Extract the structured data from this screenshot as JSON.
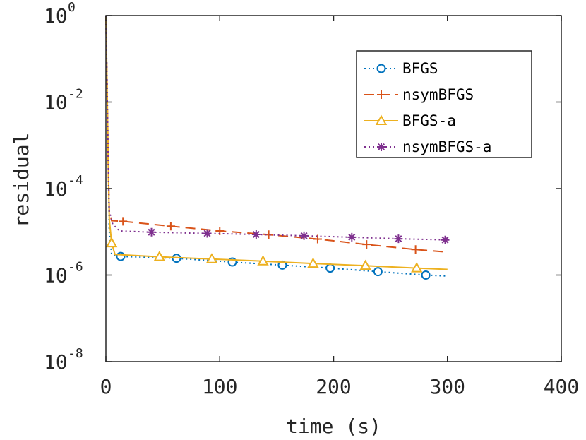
{
  "chart_data": {
    "type": "line",
    "xlabel": "time (s)",
    "ylabel": "residual",
    "xlim": [
      0,
      400
    ],
    "ylim": [
      1e-08,
      1
    ],
    "yscale": "log",
    "grid": false,
    "legend_position": "top-right",
    "x_ticks": [
      "0",
      "100",
      "200",
      "300",
      "400"
    ],
    "y_ticks": [
      {
        "value": 1,
        "base": "10",
        "exponent": "0"
      },
      {
        "value": 0.01,
        "base": "10",
        "exponent": "-2"
      },
      {
        "value": 0.0001,
        "base": "10",
        "exponent": "-4"
      },
      {
        "value": 1e-06,
        "base": "10",
        "exponent": "-6"
      },
      {
        "value": 1e-08,
        "base": "10",
        "exponent": "-8"
      }
    ],
    "series": [
      {
        "name": "BFGS",
        "color": "#0072BD",
        "line": "dotted",
        "marker": "circle",
        "line_points": [
          [
            0,
            1
          ],
          [
            1,
            0.03
          ],
          [
            2,
            0.0005
          ],
          [
            3,
            1e-05
          ],
          [
            5,
            3e-06
          ],
          [
            13,
            2.7e-06
          ],
          [
            62,
            2.45e-06
          ],
          [
            111,
            2e-06
          ],
          [
            155,
            1.7e-06
          ],
          [
            197,
            1.45e-06
          ],
          [
            239,
            1.2e-06
          ],
          [
            281,
            1e-06
          ],
          [
            300,
            9.5e-07
          ]
        ],
        "marker_points": [
          [
            13,
            2.7e-06
          ],
          [
            62,
            2.45e-06
          ],
          [
            111,
            2e-06
          ],
          [
            155,
            1.7e-06
          ],
          [
            197,
            1.45e-06
          ],
          [
            239,
            1.2e-06
          ],
          [
            281,
            1e-06
          ]
        ]
      },
      {
        "name": "nsymBFGS",
        "color": "#D95319",
        "line": "dashed",
        "marker": "plus",
        "line_points": [
          [
            0,
            1
          ],
          [
            1,
            0.03
          ],
          [
            2,
            0.0005
          ],
          [
            3,
            3e-05
          ],
          [
            5,
            1.8e-05
          ],
          [
            15,
            1.75e-05
          ],
          [
            57,
            1.35e-05
          ],
          [
            100,
            1.05e-05
          ],
          [
            143,
            8.6e-06
          ],
          [
            186,
            6.8e-06
          ],
          [
            229,
            5.1e-06
          ],
          [
            272,
            3.9e-06
          ],
          [
            300,
            3.4e-06
          ]
        ],
        "marker_points": [
          [
            15,
            1.75e-05
          ],
          [
            57,
            1.35e-05
          ],
          [
            100,
            1.05e-05
          ],
          [
            143,
            8.6e-06
          ],
          [
            186,
            6.8e-06
          ],
          [
            229,
            5.1e-06
          ],
          [
            272,
            3.9e-06
          ]
        ]
      },
      {
        "name": "BFGS-a",
        "color": "#EDB120",
        "line": "solid",
        "marker": "triangle",
        "line_points": [
          [
            0,
            1
          ],
          [
            1,
            0.03
          ],
          [
            2,
            0.0005
          ],
          [
            3,
            2e-05
          ],
          [
            5,
            5.5e-06
          ],
          [
            8,
            3e-06
          ],
          [
            47,
            2.65e-06
          ],
          [
            93,
            2.35e-06
          ],
          [
            138,
            2.1e-06
          ],
          [
            182,
            1.85e-06
          ],
          [
            228,
            1.65e-06
          ],
          [
            273,
            1.45e-06
          ],
          [
            300,
            1.35e-06
          ]
        ],
        "marker_points": [
          [
            5,
            5.5e-06
          ],
          [
            47,
            2.65e-06
          ],
          [
            93,
            2.35e-06
          ],
          [
            138,
            2.1e-06
          ],
          [
            182,
            1.85e-06
          ],
          [
            228,
            1.65e-06
          ],
          [
            273,
            1.45e-06
          ]
        ]
      },
      {
        "name": "nsymBFGS-a",
        "color": "#7E2F8E",
        "line": "dotted",
        "marker": "asterisk",
        "line_points": [
          [
            0,
            1
          ],
          [
            1,
            0.03
          ],
          [
            2,
            0.0005
          ],
          [
            3,
            3e-05
          ],
          [
            6,
            1.5e-05
          ],
          [
            12,
            1.05e-05
          ],
          [
            40,
            9.8e-06
          ],
          [
            89,
            9.2e-06
          ],
          [
            132,
            8.7e-06
          ],
          [
            174,
            8.1e-06
          ],
          [
            216,
            7.5e-06
          ],
          [
            257,
            6.9e-06
          ],
          [
            300,
            6.5e-06
          ]
        ],
        "marker_points": [
          [
            40,
            9.8e-06
          ],
          [
            89,
            9.2e-06
          ],
          [
            132,
            8.7e-06
          ],
          [
            174,
            8.1e-06
          ],
          [
            216,
            7.5e-06
          ],
          [
            257,
            6.9e-06
          ],
          [
            298,
            6.5e-06
          ]
        ]
      }
    ]
  }
}
